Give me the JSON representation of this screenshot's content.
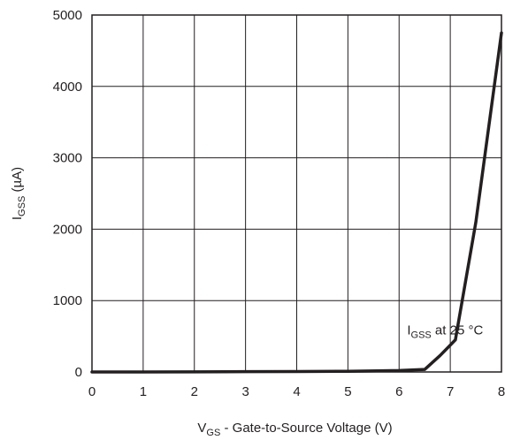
{
  "chart_data": {
    "type": "line",
    "xlabel": {
      "main": "V",
      "sub": "GS",
      "rest": " - Gate-to-Source Voltage (V)"
    },
    "ylabel": {
      "main": "I",
      "sub": "GSS",
      "rest": " (µA)"
    },
    "xlim": [
      0,
      8
    ],
    "ylim": [
      0,
      5000
    ],
    "x_ticks": [
      0,
      1,
      2,
      3,
      4,
      5,
      6,
      7,
      8
    ],
    "y_ticks": [
      0,
      1000,
      2000,
      3000,
      4000,
      5000
    ],
    "x_tick_labels": [
      "0",
      "1",
      "2",
      "3",
      "4",
      "5",
      "6",
      "7",
      "8"
    ],
    "y_tick_labels": [
      "0",
      "1000",
      "2000",
      "3000",
      "4000",
      "5000"
    ],
    "grid": true,
    "series": [
      {
        "x": [
          0,
          1,
          2,
          3,
          4,
          5,
          6,
          6.5,
          6.8,
          7.1,
          7.5,
          8.0
        ],
        "y": [
          0,
          0,
          2,
          4,
          6,
          10,
          20,
          35,
          230,
          450,
          2100,
          4750
        ]
      }
    ],
    "annotation": {
      "main": "I",
      "sub": "GSS",
      "rest": " at 25 °C",
      "x": 6.9,
      "y": 600
    }
  }
}
